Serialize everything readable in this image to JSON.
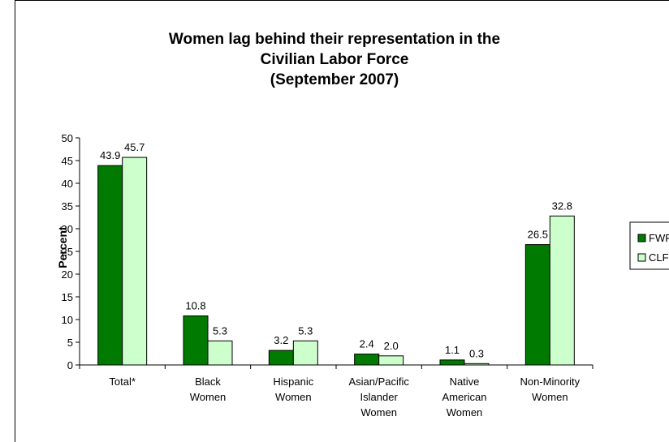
{
  "chart_data": {
    "type": "bar",
    "title": [
      "Women lag behind their representation in the",
      "Civilian Labor Force",
      "(September 2007)"
    ],
    "y_label": "Percent",
    "categories": [
      "Total*",
      "Black Women",
      "Hispanic Women",
      "Asian/Pacific Islander Women",
      "Native American Women",
      "Non-Minority Women"
    ],
    "series": [
      {
        "name": "FWF",
        "color": "#007a00",
        "values": [
          43.9,
          10.8,
          3.2,
          2.4,
          1.1,
          26.5
        ],
        "value_labels": [
          "43.9",
          "10.8",
          "3.2",
          "2.4",
          "1.1",
          "26.5"
        ]
      },
      {
        "name": "CLF",
        "color": "#ccffcc",
        "values": [
          45.7,
          5.3,
          5.3,
          2.0,
          0.3,
          32.8
        ],
        "value_labels": [
          "45.7",
          "5.3",
          "5.3",
          "2.0",
          "0.3",
          "32.8"
        ]
      }
    ],
    "ylim": [
      0,
      50
    ],
    "yticks": [
      0,
      5,
      10,
      15,
      20,
      25,
      30,
      35,
      40,
      45,
      50
    ],
    "legend": "right"
  }
}
